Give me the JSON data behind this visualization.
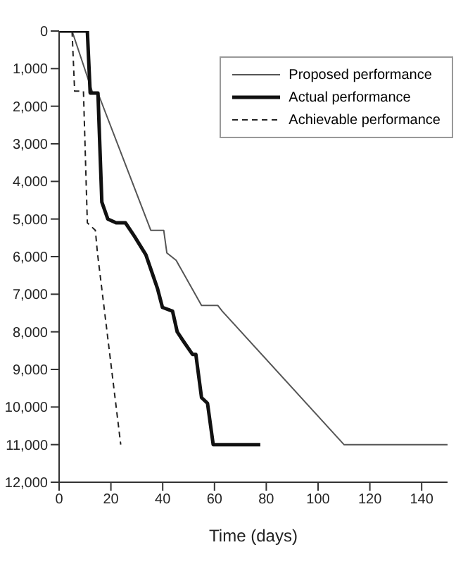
{
  "chart_data": {
    "type": "line",
    "xlabel": "Time (days)",
    "xlim": [
      0,
      150
    ],
    "xticks": [
      0,
      20,
      40,
      60,
      80,
      100,
      120,
      140
    ],
    "ylim": [
      12000,
      0
    ],
    "yticks": [
      0,
      {
        "value": 1000,
        "label": "1,000"
      },
      {
        "value": 2000,
        "label": "2,000"
      },
      {
        "value": 3000,
        "label": "3,000"
      },
      {
        "value": 4000,
        "label": "4,000"
      },
      {
        "value": 5000,
        "label": "5,000"
      },
      {
        "value": 6000,
        "label": "6,000"
      },
      {
        "value": 7000,
        "label": "7,000"
      },
      {
        "value": 8000,
        "label": "8,000"
      },
      {
        "value": 9000,
        "label": "9,000"
      },
      {
        "value": 10000,
        "label": "10,000"
      },
      {
        "value": 11000,
        "label": "11,000"
      },
      {
        "value": 12000,
        "label": "12,000"
      }
    ],
    "grid": false,
    "legend": "top right",
    "marker": "none",
    "series": [
      {
        "name": "Proposed performance",
        "color": "#555555",
        "line_style": "solid",
        "x": [
          0,
          5,
          13,
          15,
          35.4,
          40.4,
          41.6,
          45.2,
          55,
          61.3,
          63,
          110,
          150
        ],
        "values": [
          0,
          0,
          1650,
          1650,
          5300,
          5300,
          5900,
          6100,
          7300,
          7300,
          7450,
          11000,
          11000
        ]
      },
      {
        "name": "Actual performance",
        "color": "#111111",
        "line_style": "solid",
        "x": [
          0,
          10.9,
          12,
          15,
          16.5,
          18.8,
          22,
          25.6,
          29,
          33.5,
          38,
          39.9,
          43.8,
          45.6,
          48,
          51.5,
          52.8,
          55,
          57.3,
          59.5,
          77.7
        ],
        "values": [
          0,
          0,
          1650,
          1650,
          4550,
          5000,
          5100,
          5100,
          5450,
          5950,
          6850,
          7350,
          7450,
          8000,
          8250,
          8600,
          8600,
          9750,
          9900,
          11000,
          11000
        ]
      },
      {
        "name": "Achievable performance",
        "color": "#222222",
        "line_style": "dashed",
        "x": [
          5,
          6,
          9.4,
          10.9,
          14,
          14.8,
          23.8
        ],
        "values": [
          0,
          1600,
          1600,
          5100,
          5300,
          5900,
          11000
        ]
      }
    ]
  }
}
